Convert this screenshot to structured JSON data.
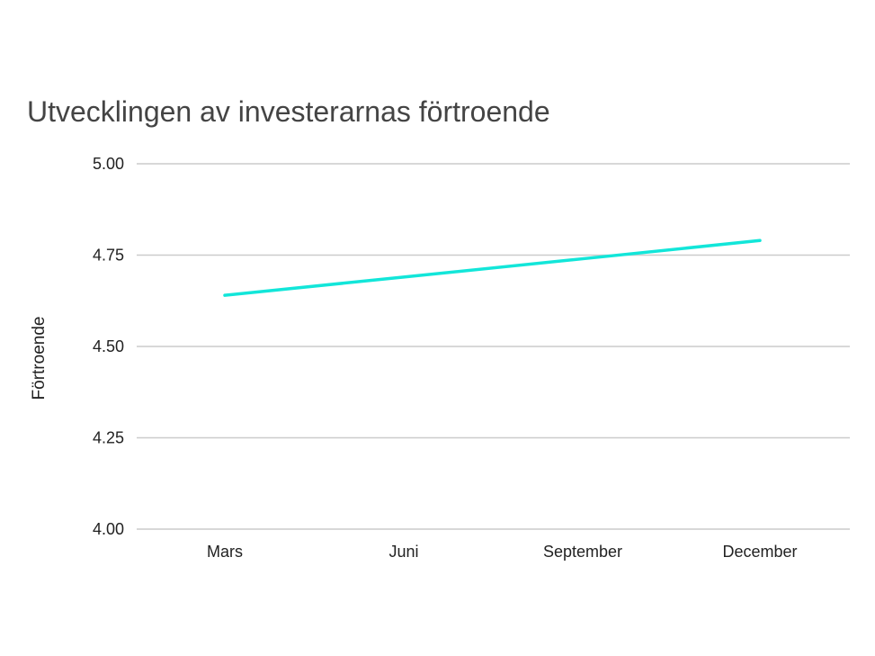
{
  "chart_data": {
    "type": "line",
    "title": "Utvecklingen av investerarnas förtroende",
    "xlabel": "",
    "ylabel": "Förtroende",
    "categories": [
      "Mars",
      "Juni",
      "September",
      "December"
    ],
    "series": [
      {
        "values": [
          4.64,
          4.69,
          4.74,
          4.79
        ],
        "color": "#12e6d9"
      }
    ],
    "ylim": [
      4.0,
      5.0
    ],
    "yticks": [
      "4.00",
      "4.25",
      "4.50",
      "4.75",
      "5.00"
    ],
    "grid": true,
    "legend": "none"
  }
}
